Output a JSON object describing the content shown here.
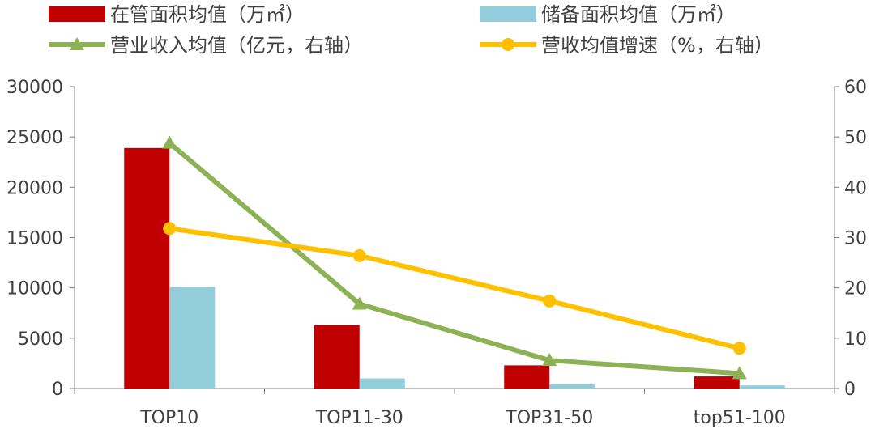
{
  "chart_data": {
    "type": "bar",
    "categories": [
      "TOP10",
      "TOP11-30",
      "TOP31-50",
      "top51-100"
    ],
    "left_axis": {
      "ylim": [
        0,
        30000
      ],
      "ticks": [
        0,
        5000,
        10000,
        15000,
        20000,
        25000,
        30000
      ]
    },
    "right_axis": {
      "ylim": [
        0,
        60
      ],
      "ticks": [
        0,
        10,
        20,
        30,
        40,
        50,
        60
      ]
    },
    "series": [
      {
        "name": "在管面积均值（万㎡）",
        "type": "bar",
        "axis": "left",
        "color": "#C00000",
        "values": [
          23900,
          6300,
          2300,
          1200
        ]
      },
      {
        "name": "储备面积均值（万㎡）",
        "type": "bar",
        "axis": "left",
        "color": "#92CDDC",
        "values": [
          10100,
          1000,
          400,
          300
        ]
      },
      {
        "name": "营业收入均值（亿元，右轴）",
        "type": "line",
        "marker": "triangle",
        "axis": "right",
        "color": "#8DB255",
        "values": [
          48.8,
          16.8,
          5.6,
          3.0
        ]
      },
      {
        "name": "营收均值增速（%，右轴）",
        "type": "line",
        "marker": "circle",
        "axis": "right",
        "color": "#FFC000",
        "values": [
          31.8,
          26.4,
          17.4,
          8.0
        ]
      }
    ],
    "legend_placement": "top",
    "grid": false
  }
}
